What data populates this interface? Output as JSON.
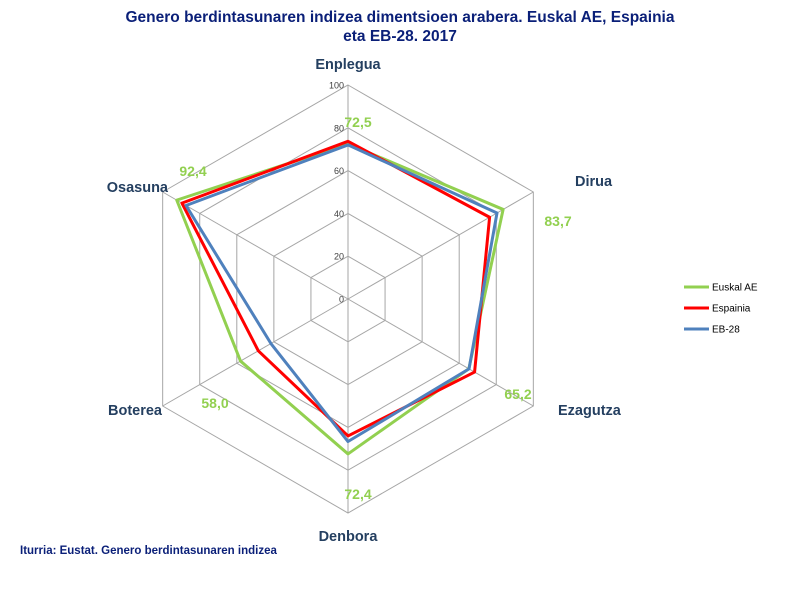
{
  "title": {
    "line1": "Genero berdintasunaren indizea dimentsioen arabera. Euskal AE, Espainia",
    "line2": "eta EB-28. 2017"
  },
  "source": "Iturria: Eustat. Genero berdintasunaren indizea",
  "chart_data": {
    "type": "radar",
    "title": "Genero berdintasunaren indizea dimentsioen arabera. Euskal AE, Espainia eta EB-28. 2017",
    "categories": [
      "Enplegua",
      "Dirua",
      "Ezagutza",
      "Denbora",
      "Boterea",
      "Osasuna"
    ],
    "axis": {
      "min": 0,
      "max": 100,
      "step": 20,
      "tick_labels": [
        "0",
        "20",
        "40",
        "60",
        "80",
        "100"
      ]
    },
    "series": [
      {
        "name": "Euskal AE",
        "color": "#92d050",
        "values": [
          72.5,
          83.7,
          65.2,
          72.4,
          58.0,
          92.4
        ]
      },
      {
        "name": "Espainia",
        "color": "#ff0000",
        "values": [
          73.7,
          76.4,
          68.3,
          64.0,
          48.4,
          89.6
        ]
      },
      {
        "name": "EB-28",
        "color": "#4f81bd",
        "values": [
          72.0,
          80.4,
          65.3,
          66.6,
          41.6,
          87.4
        ]
      }
    ],
    "data_labels": {
      "series": "Euskal AE",
      "color": "#92d050",
      "texts": [
        "72,5",
        "83,7",
        "65,2",
        "72,4",
        "58,0",
        "92,4"
      ]
    },
    "legend_position": "right"
  }
}
